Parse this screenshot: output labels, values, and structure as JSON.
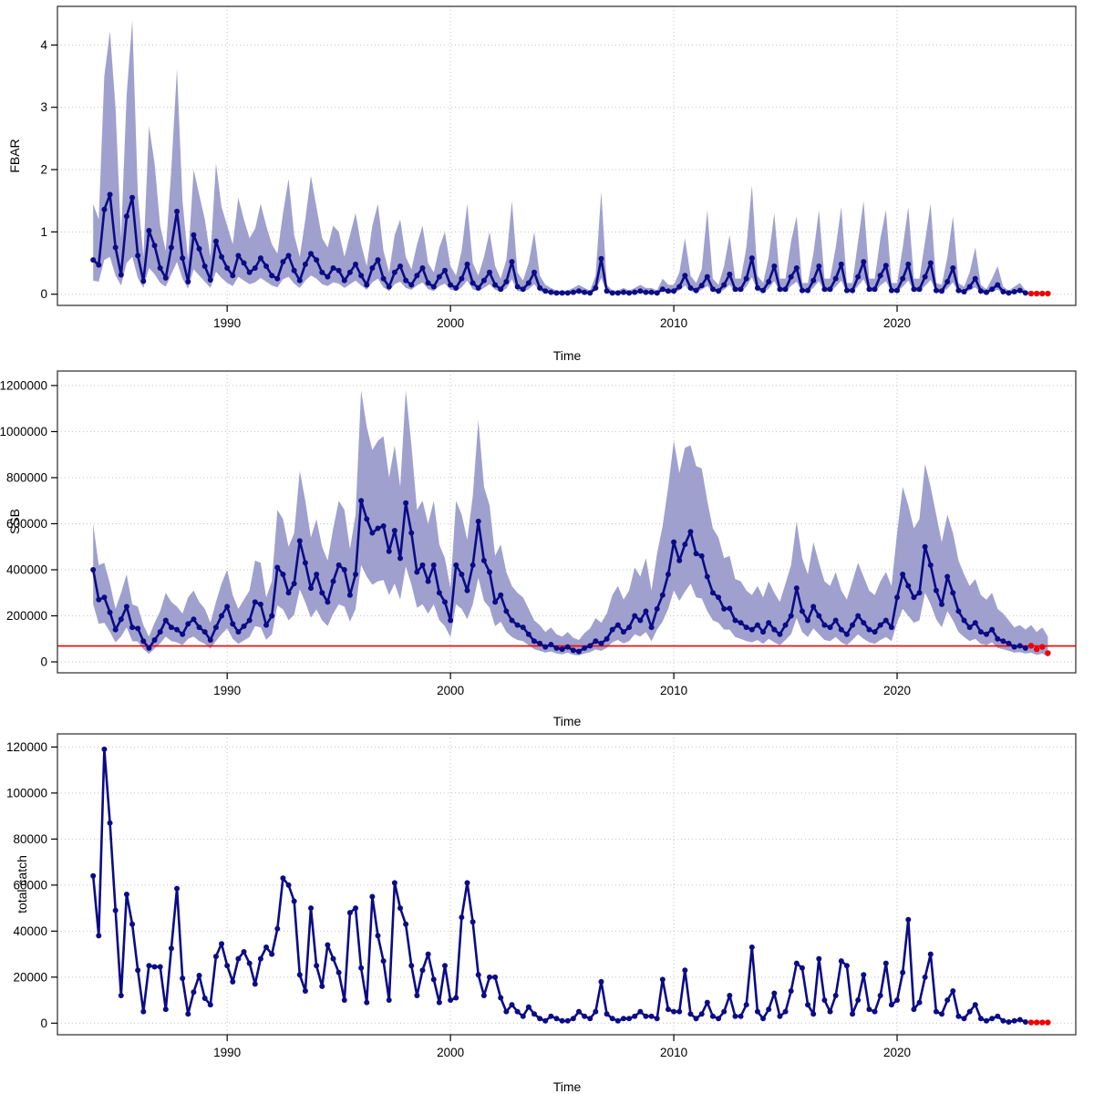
{
  "figure": {
    "background": "#ffffff"
  },
  "style": {
    "line_color": "#0B0B86",
    "point_color": "#0B0B86",
    "band_color": "#9696C9",
    "forecast_color": "#EE0000",
    "ref_line_color": "#FF0000",
    "grid_color": "#C3C3C3",
    "axis_color": "#000000",
    "border_color": "#3A3A3A"
  },
  "chart_data": [
    {
      "type": "line",
      "ylabel": "FBAR",
      "xlabel": "Time",
      "x_ticks": [
        1990,
        2000,
        2010,
        2020
      ],
      "y_ticks": [
        0,
        1,
        2,
        3,
        4
      ],
      "xlim": [
        1982.4,
        2028.0
      ],
      "ylim": [
        -0.18,
        4.62
      ],
      "x_start": 1984.0,
      "x_step": 0.25,
      "forecast_points": 4,
      "grid": true,
      "legend": "none",
      "ref_line": null,
      "median": [
        0.55,
        0.47,
        1.36,
        1.6,
        0.75,
        0.31,
        1.25,
        1.55,
        0.62,
        0.21,
        1.02,
        0.78,
        0.42,
        0.26,
        0.75,
        1.33,
        0.58,
        0.2,
        0.95,
        0.73,
        0.45,
        0.23,
        0.85,
        0.6,
        0.42,
        0.3,
        0.62,
        0.5,
        0.35,
        0.42,
        0.58,
        0.45,
        0.3,
        0.25,
        0.52,
        0.62,
        0.38,
        0.22,
        0.48,
        0.65,
        0.55,
        0.35,
        0.28,
        0.42,
        0.38,
        0.22,
        0.35,
        0.48,
        0.3,
        0.15,
        0.42,
        0.55,
        0.25,
        0.12,
        0.35,
        0.45,
        0.22,
        0.15,
        0.3,
        0.42,
        0.18,
        0.12,
        0.28,
        0.38,
        0.15,
        0.1,
        0.25,
        0.48,
        0.18,
        0.1,
        0.22,
        0.35,
        0.15,
        0.08,
        0.2,
        0.52,
        0.12,
        0.08,
        0.18,
        0.35,
        0.1,
        0.05,
        0.03,
        0.02,
        0.02,
        0.02,
        0.03,
        0.05,
        0.03,
        0.02,
        0.1,
        0.57,
        0.05,
        0.02,
        0.02,
        0.03,
        0.02,
        0.03,
        0.05,
        0.03,
        0.03,
        0.02,
        0.08,
        0.05,
        0.05,
        0.12,
        0.3,
        0.1,
        0.06,
        0.14,
        0.28,
        0.08,
        0.05,
        0.15,
        0.32,
        0.08,
        0.08,
        0.25,
        0.58,
        0.1,
        0.06,
        0.2,
        0.45,
        0.08,
        0.08,
        0.28,
        0.42,
        0.06,
        0.06,
        0.22,
        0.45,
        0.08,
        0.08,
        0.25,
        0.48,
        0.06,
        0.06,
        0.28,
        0.52,
        0.08,
        0.08,
        0.3,
        0.46,
        0.06,
        0.06,
        0.25,
        0.48,
        0.08,
        0.08,
        0.28,
        0.5,
        0.06,
        0.05,
        0.2,
        0.42,
        0.06,
        0.04,
        0.12,
        0.25,
        0.05,
        0.03,
        0.08,
        0.15,
        0.04,
        0.02,
        0.04,
        0.06,
        0.02,
        0.01,
        0.01,
        0.01,
        0.01
      ],
      "lower": [
        0.22,
        0.2,
        0.55,
        0.6,
        0.3,
        0.14,
        0.5,
        0.6,
        0.26,
        0.1,
        0.42,
        0.32,
        0.18,
        0.12,
        0.32,
        0.52,
        0.25,
        0.09,
        0.4,
        0.3,
        0.2,
        0.1,
        0.36,
        0.26,
        0.18,
        0.13,
        0.28,
        0.22,
        0.16,
        0.19,
        0.26,
        0.2,
        0.14,
        0.11,
        0.24,
        0.28,
        0.17,
        0.1,
        0.22,
        0.3,
        0.25,
        0.16,
        0.13,
        0.19,
        0.17,
        0.1,
        0.16,
        0.22,
        0.14,
        0.07,
        0.19,
        0.25,
        0.11,
        0.05,
        0.16,
        0.2,
        0.1,
        0.07,
        0.14,
        0.19,
        0.08,
        0.05,
        0.13,
        0.17,
        0.07,
        0.05,
        0.11,
        0.22,
        0.08,
        0.05,
        0.1,
        0.16,
        0.07,
        0.04,
        0.09,
        0.24,
        0.05,
        0.04,
        0.08,
        0.16,
        0.05,
        0.02,
        0.01,
        0.01,
        0.01,
        0.01,
        0.01,
        0.02,
        0.01,
        0.01,
        0.05,
        0.26,
        0.02,
        0.01,
        0.01,
        0.01,
        0.01,
        0.01,
        0.02,
        0.01,
        0.01,
        0.01,
        0.04,
        0.02,
        0.02,
        0.06,
        0.14,
        0.05,
        0.03,
        0.07,
        0.13,
        0.04,
        0.02,
        0.07,
        0.15,
        0.04,
        0.04,
        0.12,
        0.27,
        0.05,
        0.03,
        0.09,
        0.21,
        0.04,
        0.04,
        0.13,
        0.2,
        0.03,
        0.03,
        0.1,
        0.21,
        0.04,
        0.04,
        0.12,
        0.22,
        0.03,
        0.03,
        0.13,
        0.24,
        0.04,
        0.04,
        0.14,
        0.21,
        0.03,
        0.03,
        0.12,
        0.22,
        0.04,
        0.04,
        0.13,
        0.23,
        0.03,
        0.02,
        0.09,
        0.19,
        0.03,
        0.02,
        0.06,
        0.11,
        0.02,
        0.01,
        0.04,
        0.07,
        0.02,
        0.01,
        0.02,
        0.03,
        0.01
      ],
      "upper": [
        1.45,
        1.2,
        3.5,
        4.22,
        3.0,
        0.9,
        3.2,
        4.4,
        1.6,
        0.6,
        2.7,
        2.1,
        1.1,
        0.7,
        2.0,
        3.62,
        1.5,
        0.55,
        2.0,
        1.6,
        1.2,
        0.6,
        2.1,
        1.4,
        1.1,
        0.8,
        1.55,
        1.2,
        0.9,
        1.05,
        1.45,
        1.1,
        0.8,
        0.65,
        1.3,
        1.85,
        0.95,
        0.6,
        1.2,
        1.9,
        1.4,
        0.9,
        0.75,
        1.1,
        1.0,
        0.6,
        0.95,
        1.3,
        0.8,
        0.45,
        1.1,
        1.45,
        0.7,
        0.35,
        0.95,
        1.2,
        0.6,
        0.4,
        0.8,
        1.1,
        0.5,
        0.35,
        0.75,
        1.0,
        0.45,
        0.3,
        0.7,
        1.45,
        0.5,
        0.3,
        0.6,
        1.0,
        0.45,
        0.25,
        0.55,
        1.5,
        0.35,
        0.22,
        0.5,
        1.0,
        0.3,
        0.15,
        0.1,
        0.06,
        0.06,
        0.06,
        0.1,
        0.15,
        0.1,
        0.06,
        0.3,
        1.65,
        0.15,
        0.06,
        0.06,
        0.1,
        0.06,
        0.1,
        0.15,
        0.1,
        0.1,
        0.06,
        0.25,
        0.15,
        0.15,
        0.35,
        0.9,
        0.3,
        0.18,
        0.4,
        1.35,
        0.25,
        0.15,
        0.45,
        0.95,
        0.25,
        0.25,
        0.75,
        1.75,
        0.3,
        0.18,
        0.6,
        1.3,
        0.25,
        0.25,
        0.85,
        1.25,
        0.18,
        0.18,
        0.65,
        1.35,
        0.25,
        0.25,
        0.75,
        1.4,
        0.18,
        0.18,
        0.85,
        1.5,
        0.25,
        0.25,
        0.9,
        1.35,
        0.18,
        0.18,
        0.75,
        1.4,
        0.25,
        0.25,
        0.85,
        1.45,
        0.18,
        0.15,
        0.6,
        1.25,
        0.18,
        0.12,
        0.35,
        0.75,
        0.15,
        0.08,
        0.25,
        0.45,
        0.12,
        0.06,
        0.12,
        0.18,
        0.06
      ]
    },
    {
      "type": "line",
      "ylabel": "SSB",
      "xlabel": "Time",
      "x_ticks": [
        1990,
        2000,
        2010,
        2020
      ],
      "y_ticks": [
        0,
        200000,
        400000,
        600000,
        800000,
        1000000,
        1200000
      ],
      "xlim": [
        1982.4,
        2028.0
      ],
      "ylim": [
        -47500,
        1263000
      ],
      "x_start": 1984.0,
      "x_step": 0.25,
      "forecast_points": 4,
      "grid": true,
      "legend": "none",
      "ref_line": {
        "value": 69000,
        "label": "reference"
      },
      "median": [
        400000,
        270000,
        280000,
        215000,
        140000,
        185000,
        240000,
        150000,
        145000,
        90000,
        60000,
        95000,
        130000,
        180000,
        150000,
        140000,
        120000,
        165000,
        185000,
        150000,
        130000,
        95000,
        150000,
        200000,
        240000,
        165000,
        130000,
        155000,
        180000,
        260000,
        250000,
        160000,
        200000,
        410000,
        380000,
        300000,
        340000,
        525000,
        430000,
        320000,
        380000,
        300000,
        260000,
        350000,
        420000,
        400000,
        290000,
        380000,
        700000,
        620000,
        560000,
        580000,
        590000,
        480000,
        570000,
        450000,
        690000,
        560000,
        390000,
        420000,
        350000,
        420000,
        300000,
        260000,
        180000,
        420000,
        380000,
        310000,
        420000,
        610000,
        440000,
        390000,
        260000,
        290000,
        220000,
        180000,
        160000,
        150000,
        120000,
        90000,
        80000,
        65000,
        75000,
        60000,
        55000,
        65000,
        50000,
        45000,
        60000,
        70000,
        90000,
        80000,
        100000,
        140000,
        160000,
        130000,
        150000,
        200000,
        180000,
        220000,
        150000,
        230000,
        290000,
        380000,
        520000,
        440000,
        510000,
        565000,
        470000,
        460000,
        370000,
        300000,
        280000,
        230000,
        232000,
        180000,
        170000,
        150000,
        140000,
        160000,
        130000,
        170000,
        140000,
        120000,
        160000,
        200000,
        320000,
        220000,
        180000,
        240000,
        200000,
        160000,
        150000,
        180000,
        140000,
        120000,
        160000,
        200000,
        170000,
        140000,
        130000,
        160000,
        180000,
        150000,
        280000,
        380000,
        330000,
        280000,
        300000,
        500000,
        420000,
        310000,
        250000,
        370000,
        300000,
        220000,
        180000,
        150000,
        170000,
        130000,
        120000,
        140000,
        100000,
        90000,
        80000,
        65000,
        70000,
        60000,
        70000,
        55000,
        65000,
        38000
      ],
      "lower": [
        250000,
        165000,
        170000,
        130000,
        85000,
        110000,
        150000,
        90000,
        88000,
        55000,
        35000,
        58000,
        80000,
        110000,
        90000,
        85000,
        72000,
        100000,
        110000,
        90000,
        78000,
        57000,
        90000,
        120000,
        145000,
        100000,
        78000,
        93000,
        108000,
        155000,
        150000,
        96000,
        120000,
        245000,
        228000,
        180000,
        205000,
        315000,
        258000,
        192000,
        228000,
        180000,
        156000,
        210000,
        250000,
        240000,
        175000,
        230000,
        420000,
        370000,
        335000,
        350000,
        355000,
        290000,
        340000,
        270000,
        415000,
        335000,
        235000,
        250000,
        210000,
        250000,
        180000,
        155000,
        108000,
        250000,
        230000,
        185000,
        250000,
        365000,
        265000,
        235000,
        155000,
        175000,
        130000,
        108000,
        95000,
        90000,
        72000,
        55000,
        48000,
        40000,
        45000,
        36000,
        33000,
        40000,
        30000,
        28000,
        36000,
        42000,
        54000,
        48000,
        60000,
        85000,
        95000,
        80000,
        90000,
        120000,
        110000,
        130000,
        90000,
        140000,
        175000,
        230000,
        310000,
        265000,
        305000,
        340000,
        280000,
        275000,
        220000,
        180000,
        170000,
        140000,
        140000,
        108000,
        100000,
        90000,
        85000,
        95000,
        78000,
        100000,
        85000,
        72000,
        95000,
        120000,
        190000,
        130000,
        108000,
        145000,
        120000,
        95000,
        90000,
        108000,
        85000,
        72000,
        95000,
        120000,
        100000,
        85000,
        78000,
        95000,
        108000,
        90000,
        170000,
        230000,
        200000,
        170000,
        180000,
        300000,
        250000,
        185000,
        150000,
        220000,
        180000,
        130000,
        108000,
        90000,
        100000,
        78000,
        72000,
        85000,
        60000,
        55000,
        48000,
        40000,
        42000,
        36000,
        40000,
        30000,
        36000,
        22000
      ],
      "upper": [
        600000,
        420000,
        430000,
        340000,
        230000,
        300000,
        380000,
        250000,
        240000,
        160000,
        110000,
        170000,
        220000,
        300000,
        260000,
        240000,
        210000,
        280000,
        310000,
        260000,
        230000,
        170000,
        260000,
        340000,
        400000,
        290000,
        230000,
        270000,
        310000,
        440000,
        430000,
        280000,
        350000,
        660000,
        620000,
        500000,
        560000,
        830000,
        700000,
        540000,
        620000,
        500000,
        440000,
        580000,
        700000,
        660000,
        490000,
        640000,
        1180000,
        1020000,
        920000,
        960000,
        980000,
        800000,
        940000,
        760000,
        1180000,
        940000,
        660000,
        700000,
        600000,
        700000,
        510000,
        450000,
        320000,
        700000,
        640000,
        530000,
        720000,
        1050000,
        760000,
        680000,
        460000,
        510000,
        390000,
        330000,
        300000,
        280000,
        230000,
        180000,
        160000,
        130000,
        150000,
        120000,
        110000,
        130000,
        105000,
        95000,
        125000,
        145000,
        190000,
        170000,
        210000,
        290000,
        330000,
        270000,
        310000,
        410000,
        370000,
        450000,
        310000,
        470000,
        590000,
        760000,
        960000,
        820000,
        930000,
        940000,
        850000,
        840000,
        700000,
        580000,
        540000,
        450000,
        460000,
        360000,
        350000,
        310000,
        290000,
        330000,
        280000,
        350000,
        300000,
        260000,
        340000,
        420000,
        610000,
        450000,
        380000,
        520000,
        430000,
        350000,
        330000,
        390000,
        310000,
        270000,
        350000,
        430000,
        370000,
        310000,
        290000,
        350000,
        390000,
        330000,
        560000,
        760000,
        680000,
        580000,
        620000,
        860000,
        760000,
        640000,
        520000,
        640000,
        560000,
        440000,
        380000,
        330000,
        360000,
        290000,
        270000,
        300000,
        230000,
        210000,
        180000,
        150000,
        160000,
        140000,
        160000,
        130000,
        150000,
        110000
      ]
    },
    {
      "type": "line",
      "ylabel": "total catch",
      "xlabel": "Time",
      "x_ticks": [
        1990,
        2000,
        2010,
        2020
      ],
      "y_ticks": [
        0,
        20000,
        40000,
        60000,
        80000,
        100000,
        120000
      ],
      "xlim": [
        1982.4,
        2028.0
      ],
      "ylim": [
        -5030,
        125700
      ],
      "x_start": 1984.0,
      "x_step": 0.25,
      "forecast_points": 4,
      "grid": true,
      "legend": "none",
      "ref_line": null,
      "median": [
        64000,
        38000,
        119000,
        87000,
        49000,
        12000,
        56000,
        43000,
        23000,
        5000,
        25000,
        24500,
        24500,
        6000,
        32500,
        58500,
        19500,
        4000,
        13500,
        20700,
        10800,
        8000,
        29000,
        34500,
        25000,
        18000,
        28000,
        31000,
        26000,
        17000,
        28000,
        33000,
        30000,
        41000,
        63000,
        60000,
        53000,
        21000,
        14000,
        50000,
        25000,
        16000,
        34000,
        28000,
        22000,
        10000,
        48000,
        50000,
        24000,
        9000,
        55000,
        38000,
        27000,
        10000,
        61000,
        50000,
        43000,
        25000,
        12000,
        23000,
        30000,
        19000,
        9000,
        25000,
        10000,
        11000,
        46000,
        61000,
        44000,
        21000,
        12000,
        20000,
        20000,
        11000,
        5000,
        8000,
        5000,
        3000,
        7000,
        4000,
        2000,
        1000,
        3000,
        2000,
        1000,
        1000,
        2000,
        5000,
        3000,
        2000,
        5000,
        18000,
        4000,
        2000,
        1000,
        2000,
        2000,
        3000,
        5000,
        3000,
        3000,
        2000,
        19000,
        6000,
        5000,
        5000,
        23000,
        4000,
        2000,
        4000,
        9000,
        3000,
        2000,
        5000,
        12000,
        3000,
        3000,
        8000,
        33000,
        5000,
        2000,
        6000,
        13000,
        3000,
        5000,
        14000,
        26000,
        24000,
        8000,
        4000,
        28000,
        10000,
        5000,
        12000,
        27000,
        25000,
        4000,
        10000,
        21000,
        6000,
        5000,
        12000,
        26000,
        8000,
        10000,
        22000,
        45000,
        6000,
        9000,
        20000,
        30000,
        5000,
        4000,
        10000,
        14000,
        3000,
        2000,
        5000,
        8000,
        2000,
        1000,
        2000,
        3000,
        1000,
        500,
        1000,
        1500,
        500,
        300,
        300,
        300,
        300
      ]
    }
  ]
}
